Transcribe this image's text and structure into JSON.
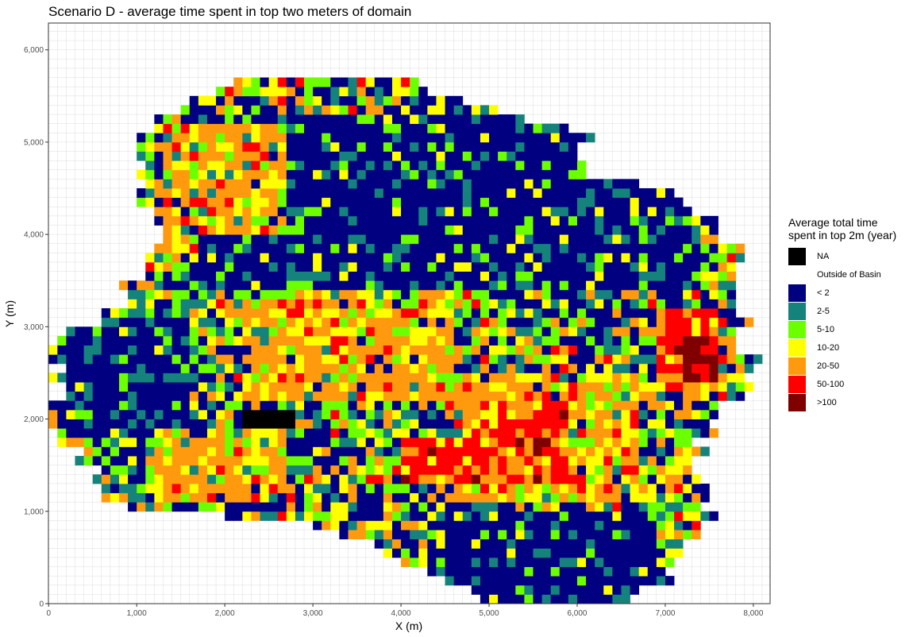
{
  "chart_data": {
    "type": "heatmap",
    "title": "Scenario D - average time spent in top two meters of domain",
    "xlabel": "X (m)",
    "ylabel": "Y (m)",
    "xlim": [
      0,
      8000
    ],
    "ylim": [
      0,
      6000
    ],
    "x_ticks": [
      "0",
      "1,000",
      "2,000",
      "3,000",
      "4,000",
      "5,000",
      "6,000",
      "7,000",
      "8,000"
    ],
    "y_ticks": [
      "0",
      "1,000",
      "2,000",
      "3,000",
      "4,000",
      "5,000",
      "6,000"
    ],
    "cell_size_m": 100,
    "grid": true,
    "legend_position": "right",
    "legend_title": "Average total time\nspent in top 2m (year)",
    "legend": [
      {
        "label": "NA",
        "color": "#000000"
      },
      {
        "label": "Outside of Basin",
        "color": "#ffffff"
      },
      {
        "label": "< 2",
        "color": "#000080"
      },
      {
        "label": "2-5",
        "color": "#15837c"
      },
      {
        "label": "5-10",
        "color": "#6cff00"
      },
      {
        "label": "10-20",
        "color": "#ffff00"
      },
      {
        "label": "20-50",
        "color": "#ff9a0e"
      },
      {
        "label": "50-100",
        "color": "#ff0000"
      },
      {
        "label": ">100",
        "color": "#800000"
      }
    ],
    "basin_extent_by_row": [
      {
        "y": 0,
        "x_from": 4900,
        "x_to": 6700
      },
      {
        "y": 200,
        "x_from": 4500,
        "x_to": 7000
      },
      {
        "y": 400,
        "x_from": 4000,
        "x_to": 7000
      },
      {
        "y": 600,
        "x_from": 3600,
        "x_to": 7200
      },
      {
        "y": 800,
        "x_from": 3100,
        "x_to": 7500
      },
      {
        "y": 1000,
        "x_from": 800,
        "x_to": 7500
      },
      {
        "y": 1200,
        "x_from": 700,
        "x_to": 7500
      },
      {
        "y": 1400,
        "x_from": 500,
        "x_to": 7400
      },
      {
        "y": 1600,
        "x_from": 400,
        "x_to": 7400
      },
      {
        "y": 1800,
        "x_from": 0,
        "x_to": 7500
      },
      {
        "y": 2000,
        "x_from": 0,
        "x_to": 7600
      },
      {
        "y": 2200,
        "x_from": 100,
        "x_to": 7800
      },
      {
        "y": 2400,
        "x_from": 100,
        "x_to": 8000
      },
      {
        "y": 2600,
        "x_from": 100,
        "x_to": 8000
      },
      {
        "y": 2800,
        "x_from": 100,
        "x_to": 7900
      },
      {
        "y": 3000,
        "x_from": 500,
        "x_to": 7900
      },
      {
        "y": 3200,
        "x_from": 800,
        "x_to": 7900
      },
      {
        "y": 3400,
        "x_from": 900,
        "x_to": 7900
      },
      {
        "y": 3600,
        "x_from": 1000,
        "x_to": 7800
      },
      {
        "y": 3800,
        "x_from": 1100,
        "x_to": 7800
      },
      {
        "y": 4000,
        "x_from": 1200,
        "x_to": 7600
      },
      {
        "y": 4200,
        "x_from": 1200,
        "x_to": 7300
      },
      {
        "y": 4400,
        "x_from": 1100,
        "x_to": 7100
      },
      {
        "y": 4600,
        "x_from": 1100,
        "x_to": 6100
      },
      {
        "y": 4800,
        "x_from": 1100,
        "x_to": 6100
      },
      {
        "y": 5000,
        "x_from": 1100,
        "x_to": 6100
      },
      {
        "y": 5200,
        "x_from": 1300,
        "x_to": 5400
      },
      {
        "y": 5400,
        "x_from": 1700,
        "x_to": 4700
      },
      {
        "y": 5600,
        "x_from": 2100,
        "x_to": 4100
      }
    ],
    "dominant_class_regions": [
      {
        "class": "< 2",
        "x_range": [
          1700,
          7300
        ],
        "y_range": [
          3400,
          5200
        ]
      },
      {
        "class": "< 2",
        "x_range": [
          100,
          1500
        ],
        "y_range": [
          1800,
          3000
        ]
      },
      {
        "class": "< 2",
        "x_range": [
          4300,
          6800
        ],
        "y_range": [
          0,
          900
        ]
      },
      {
        "class": "20-50",
        "x_range": [
          1300,
          2600
        ],
        "y_range": [
          4000,
          5100
        ]
      },
      {
        "class": "20-50",
        "x_range": [
          1200,
          2600
        ],
        "y_range": [
          1100,
          1800
        ]
      },
      {
        "class": "20-50",
        "x_range": [
          2200,
          4500
        ],
        "y_range": [
          2200,
          3300
        ]
      },
      {
        "class": "20-50",
        "x_range": [
          4600,
          6600
        ],
        "y_range": [
          1100,
          2400
        ]
      },
      {
        "class": "50-100",
        "x_range": [
          4800,
          5800
        ],
        "y_range": [
          1300,
          2100
        ]
      },
      {
        "class": "50-100",
        "x_range": [
          4000,
          4900
        ],
        "y_range": [
          1300,
          1700
        ]
      },
      {
        "class": "50-100",
        "x_range": [
          6900,
          7500
        ],
        "y_range": [
          2300,
          3100
        ]
      },
      {
        "class": ">100",
        "x_range": [
          7200,
          7500
        ],
        "y_range": [
          2400,
          2800
        ]
      },
      {
        "class": "NA",
        "x_range": [
          2200,
          2700
        ],
        "y_range": [
          1900,
          2000
        ]
      }
    ]
  }
}
